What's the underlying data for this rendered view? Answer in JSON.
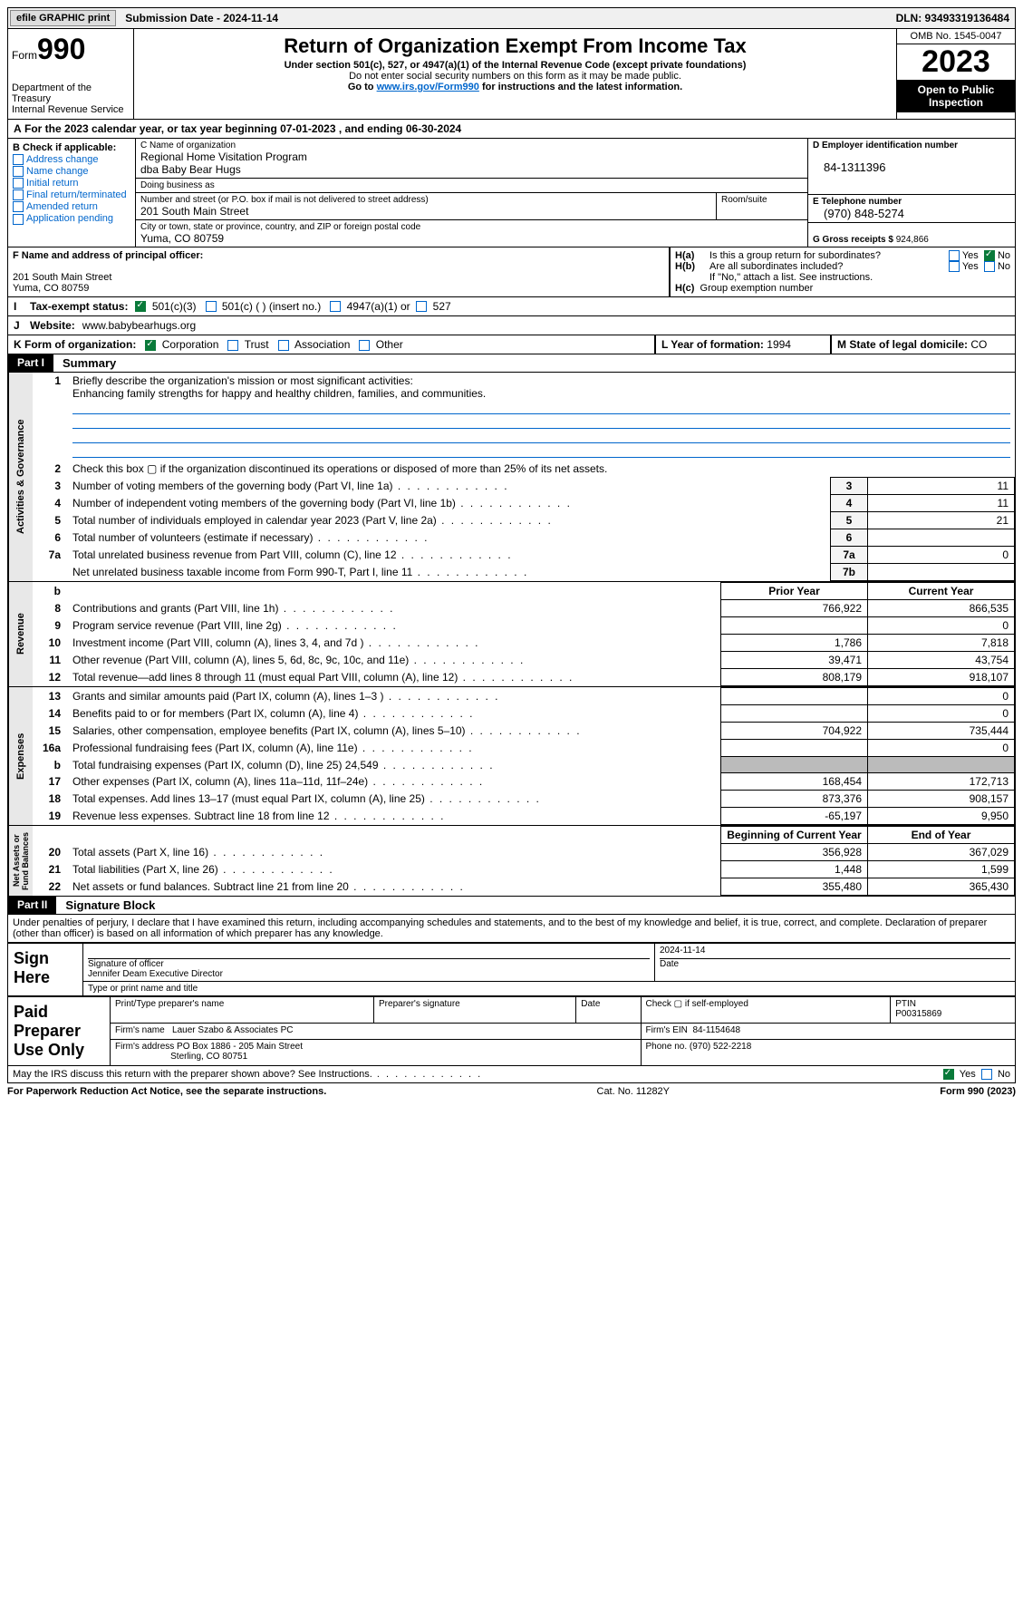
{
  "top": {
    "efile": "efile GRAPHIC print",
    "submission": "Submission Date - 2024-11-14",
    "dln": "DLN: 93493319136484"
  },
  "header": {
    "form_prefix": "Form",
    "form_num": "990",
    "title": "Return of Organization Exempt From Income Tax",
    "sub1": "Under section 501(c), 527, or 4947(a)(1) of the Internal Revenue Code (except private foundations)",
    "sub2": "Do not enter social security numbers on this form as it may be made public.",
    "sub3_pre": "Go to ",
    "sub3_link": "www.irs.gov/Form990",
    "sub3_post": " for instructions and the latest information.",
    "dept": "Department of the Treasury\nInternal Revenue Service",
    "omb": "OMB No. 1545-0047",
    "year": "2023",
    "inspect": "Open to Public Inspection"
  },
  "a": {
    "text": "For the 2023 calendar year, or tax year beginning 07-01-2023   , and ending 06-30-2024"
  },
  "b": {
    "label": "B Check if applicable:",
    "items": [
      "Address change",
      "Name change",
      "Initial return",
      "Final return/terminated",
      "Amended return",
      "Application pending"
    ]
  },
  "c": {
    "label": "C Name of organization",
    "name1": "Regional Home Visitation Program",
    "name2": "dba Baby Bear Hugs",
    "dba_label": "Doing business as",
    "addr_label": "Number and street (or P.O. box if mail is not delivered to street address)",
    "room_label": "Room/suite",
    "addr": "201 South Main Street",
    "city_label": "City or town, state or province, country, and ZIP or foreign postal code",
    "city": "Yuma, CO  80759"
  },
  "d": {
    "label": "D Employer identification number",
    "val": "84-1311396"
  },
  "e": {
    "label": "E Telephone number",
    "val": "(970) 848-5274"
  },
  "g": {
    "label": "G Gross receipts $",
    "val": "924,866"
  },
  "f": {
    "label": "F  Name and address of principal officer:",
    "addr1": "201 South Main Street",
    "addr2": "Yuma, CO  80759"
  },
  "h": {
    "a_label": "Is this a group return for subordinates?",
    "a_yes": "Yes",
    "a_no": "No",
    "b_label": "Are all subordinates included?",
    "note": "If \"No,\" attach a list. See instructions.",
    "c_label": "Group exemption number"
  },
  "i": {
    "label": "Tax-exempt status:",
    "o1": "501(c)(3)",
    "o2": "501(c) (  ) (insert no.)",
    "o3": "4947(a)(1) or",
    "o4": "527"
  },
  "j": {
    "label": "Website:",
    "val": "www.babybearhugs.org"
  },
  "k": {
    "label": "K Form of organization:",
    "o1": "Corporation",
    "o2": "Trust",
    "o3": "Association",
    "o4": "Other"
  },
  "l": {
    "label": "L Year of formation:",
    "val": "1994"
  },
  "m": {
    "label": "M State of legal domicile:",
    "val": "CO"
  },
  "part1": {
    "hdr": "Part I",
    "title": "Summary",
    "tabs": {
      "gov": "Activities & Governance",
      "rev": "Revenue",
      "exp": "Expenses",
      "net": "Net Assets or\nFund Balances"
    },
    "l1": {
      "num": "1",
      "text": "Briefly describe the organization's mission or most significant activities:",
      "val": "Enhancing family strengths for happy and healthy children, families, and communities."
    },
    "l2": {
      "num": "2",
      "text": "Check this box ▢ if the organization discontinued its operations or disposed of more than 25% of its net assets."
    },
    "rows_gov": [
      {
        "n": "3",
        "t": "Number of voting members of the governing body (Part VI, line 1a)",
        "b": "3",
        "v": "11"
      },
      {
        "n": "4",
        "t": "Number of independent voting members of the governing body (Part VI, line 1b)",
        "b": "4",
        "v": "11"
      },
      {
        "n": "5",
        "t": "Total number of individuals employed in calendar year 2023 (Part V, line 2a)",
        "b": "5",
        "v": "21"
      },
      {
        "n": "6",
        "t": "Total number of volunteers (estimate if necessary)",
        "b": "6",
        "v": ""
      },
      {
        "n": "7a",
        "t": "Total unrelated business revenue from Part VIII, column (C), line 12",
        "b": "7a",
        "v": "0"
      },
      {
        "n": "",
        "t": "Net unrelated business taxable income from Form 990-T, Part I, line 11",
        "b": "7b",
        "v": ""
      }
    ],
    "col_hdr": {
      "b": "b",
      "py": "Prior Year",
      "cy": "Current Year"
    },
    "rows_rev": [
      {
        "n": "8",
        "t": "Contributions and grants (Part VIII, line 1h)",
        "py": "766,922",
        "cy": "866,535"
      },
      {
        "n": "9",
        "t": "Program service revenue (Part VIII, line 2g)",
        "py": "",
        "cy": "0"
      },
      {
        "n": "10",
        "t": "Investment income (Part VIII, column (A), lines 3, 4, and 7d )",
        "py": "1,786",
        "cy": "7,818"
      },
      {
        "n": "11",
        "t": "Other revenue (Part VIII, column (A), lines 5, 6d, 8c, 9c, 10c, and 11e)",
        "py": "39,471",
        "cy": "43,754"
      },
      {
        "n": "12",
        "t": "Total revenue—add lines 8 through 11 (must equal Part VIII, column (A), line 12)",
        "py": "808,179",
        "cy": "918,107"
      }
    ],
    "rows_exp": [
      {
        "n": "13",
        "t": "Grants and similar amounts paid (Part IX, column (A), lines 1–3 )",
        "py": "",
        "cy": "0"
      },
      {
        "n": "14",
        "t": "Benefits paid to or for members (Part IX, column (A), line 4)",
        "py": "",
        "cy": "0"
      },
      {
        "n": "15",
        "t": "Salaries, other compensation, employee benefits (Part IX, column (A), lines 5–10)",
        "py": "704,922",
        "cy": "735,444"
      },
      {
        "n": "16a",
        "t": "Professional fundraising fees (Part IX, column (A), line 11e)",
        "py": "",
        "cy": "0"
      },
      {
        "n": "b",
        "t": "Total fundraising expenses (Part IX, column (D), line 25) 24,549",
        "py": "GREY",
        "cy": "GREY"
      },
      {
        "n": "17",
        "t": "Other expenses (Part IX, column (A), lines 11a–11d, 11f–24e)",
        "py": "168,454",
        "cy": "172,713"
      },
      {
        "n": "18",
        "t": "Total expenses. Add lines 13–17 (must equal Part IX, column (A), line 25)",
        "py": "873,376",
        "cy": "908,157"
      },
      {
        "n": "19",
        "t": "Revenue less expenses. Subtract line 18 from line 12",
        "py": "-65,197",
        "cy": "9,950"
      }
    ],
    "net_hdr": {
      "py": "Beginning of Current Year",
      "cy": "End of Year"
    },
    "rows_net": [
      {
        "n": "20",
        "t": "Total assets (Part X, line 16)",
        "py": "356,928",
        "cy": "367,029"
      },
      {
        "n": "21",
        "t": "Total liabilities (Part X, line 26)",
        "py": "1,448",
        "cy": "1,599"
      },
      {
        "n": "22",
        "t": "Net assets or fund balances. Subtract line 21 from line 20",
        "py": "355,480",
        "cy": "365,430"
      }
    ]
  },
  "part2": {
    "hdr": "Part II",
    "title": "Signature Block",
    "decl": "Under penalties of perjury, I declare that I have examined this return, including accompanying schedules and statements, and to the best of my knowledge and belief, it is true, correct, and complete. Declaration of preparer (other than officer) is based on all information of which preparer has any knowledge.",
    "sign_here": "Sign Here",
    "sig_label": "Signature of officer",
    "date_label": "Date",
    "sig_date": "2024-11-14",
    "officer": "Jennifer Deam  Executive Director",
    "type_label": "Type or print name and title",
    "paid": "Paid Preparer Use Only",
    "p_name_label": "Print/Type preparer's name",
    "p_sig_label": "Preparer's signature",
    "p_date_label": "Date",
    "p_check_label": "Check ▢ if self-employed",
    "ptin_label": "PTIN",
    "ptin": "P00315869",
    "firm_name_label": "Firm's name",
    "firm_name": "Lauer Szabo & Associates PC",
    "firm_ein_label": "Firm's EIN",
    "firm_ein": "84-1154648",
    "firm_addr_label": "Firm's address",
    "firm_addr1": "PO Box 1886 - 205 Main Street",
    "firm_addr2": "Sterling, CO  80751",
    "phone_label": "Phone no.",
    "phone": "(970) 522-2218",
    "discuss": "May the IRS discuss this return with the preparer shown above? See Instructions.",
    "yes": "Yes",
    "no": "No"
  },
  "footer": {
    "left": "For Paperwork Reduction Act Notice, see the separate instructions.",
    "mid": "Cat. No. 11282Y",
    "right": "Form 990 (2023)"
  }
}
